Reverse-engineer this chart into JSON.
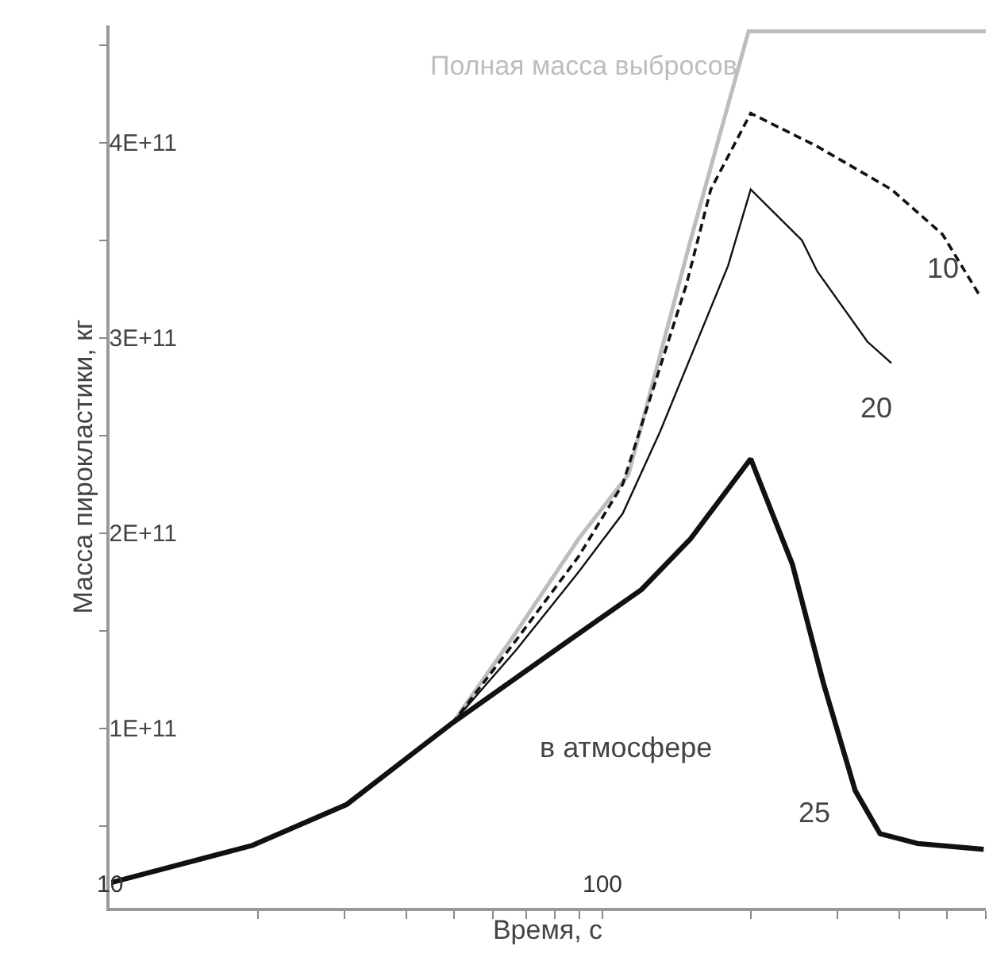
{
  "chart_data": {
    "type": "line",
    "xlabel": "Время, с",
    "ylabel": "Масса пирокластики, кг",
    "log": "x",
    "legend": false,
    "grid": false,
    "marker": "none",
    "xlim": [
      10,
      600
    ],
    "ylim": [
      8000000000.0,
      460000000000.0
    ],
    "xticks": [
      10,
      {
        "value": 20,
        "label": null
      },
      {
        "value": 30,
        "label": null
      },
      {
        "value": 40,
        "label": null
      },
      {
        "value": 50,
        "label": null
      },
      {
        "value": 60,
        "label": null
      },
      {
        "value": 70,
        "label": null
      },
      {
        "value": 80,
        "label": null
      },
      {
        "value": 90,
        "label": null
      },
      100,
      {
        "value": 200,
        "label": null
      },
      {
        "value": 300,
        "label": null
      },
      {
        "value": 400,
        "label": null
      },
      {
        "value": 500,
        "label": null
      },
      {
        "value": 600,
        "label": null
      }
    ],
    "yticks": [
      {
        "value": 50000000000.0,
        "label": null
      },
      {
        "value": 100000000000.0,
        "label": "1E+11"
      },
      {
        "value": 150000000000.0,
        "label": null
      },
      {
        "value": 200000000000.0,
        "label": "2E+11"
      },
      {
        "value": 250000000000.0,
        "label": null
      },
      {
        "value": 300000000000.0,
        "label": "3E+11"
      },
      {
        "value": 350000000000.0,
        "label": null
      },
      {
        "value": 400000000000.0,
        "label": "4E+11"
      },
      {
        "value": 450000000000.0,
        "label": null
      }
    ],
    "series": [
      {
        "name": "Полная масса выбросов",
        "color": "#bdbdbd",
        "line_style": "solid",
        "x": [
          10.1,
          19.5,
          30.3,
          49.8,
          66.8,
          89.5,
          113,
          151,
          198,
          600
        ],
        "values": [
          21000000000.0,
          40000000000.0,
          61000000000.0,
          103000000000.0,
          149000000000.0,
          197000000000.0,
          230000000000.0,
          350000000000.0,
          457000000000.0,
          457000000000.0
        ]
      },
      {
        "name": "10",
        "color": "#111111",
        "line_style": "dashed",
        "x": [
          10.1,
          19.5,
          30.3,
          49.8,
          66.8,
          89.5,
          110,
          148,
          166,
          200,
          273,
          386,
          490,
          585
        ],
        "values": [
          21000000000.0,
          40000000000.0,
          61000000000.0,
          103000000000.0,
          145000000000.0,
          188000000000.0,
          225000000000.0,
          327000000000.0,
          376000000000.0,
          415000000000.0,
          398000000000.0,
          376000000000.0,
          353000000000.0,
          321000000000.0
        ]
      },
      {
        "name": "20",
        "color": "#111111",
        "line_style": "solid",
        "x": [
          10.1,
          19.5,
          30.3,
          49.8,
          66.8,
          89.5,
          110,
          131,
          180,
          200,
          254,
          273,
          345,
          386
        ],
        "values": [
          21000000000.0,
          40000000000.0,
          61000000000.0,
          103000000000.0,
          140000000000.0,
          180000000000.0,
          210000000000.0,
          252000000000.0,
          337000000000.0,
          376000000000.0,
          350000000000.0,
          334000000000.0,
          298000000000.0,
          287000000000.0
        ]
      },
      {
        "name": "25",
        "color": "#111111",
        "line_style": "solid",
        "x": [
          10.1,
          19.5,
          30.3,
          49.8,
          84.5,
          120,
          151,
          200,
          243,
          281,
          326,
          366,
          436,
          594
        ],
        "values": [
          21000000000.0,
          40000000000.0,
          61000000000.0,
          103000000000.0,
          144000000000.0,
          171000000000.0,
          197000000000.0,
          238000000000.0,
          184000000000.0,
          123000000000.0,
          68000000000.0,
          46000000000.0,
          41000000000.0,
          38000000000.0
        ]
      }
    ],
    "annotations": [
      "в атмосфере"
    ]
  }
}
